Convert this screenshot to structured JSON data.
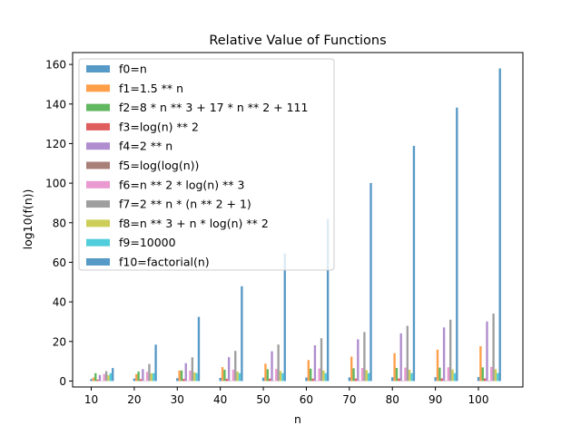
{
  "chart_data": {
    "type": "bar",
    "title": "Relative Value of Functions",
    "xlabel": "n",
    "ylabel": "log10(f(n))",
    "ylim": [
      -3,
      166
    ],
    "categories": [
      "10",
      "20",
      "30",
      "40",
      "50",
      "60",
      "70",
      "80",
      "90",
      "100"
    ],
    "x_ticks": [
      "10",
      "20",
      "30",
      "40",
      "50",
      "60",
      "70",
      "80",
      "90",
      "100"
    ],
    "y_ticks": [
      "0",
      "20",
      "40",
      "60",
      "80",
      "100",
      "120",
      "140",
      "160"
    ],
    "legend_position": "upper-left",
    "grid": false,
    "series": [
      {
        "name": "f0=n",
        "color": "#1f77b4",
        "values": [
          1.0,
          1.3,
          1.48,
          1.6,
          1.7,
          1.78,
          1.85,
          1.9,
          1.95,
          2.0
        ]
      },
      {
        "name": "f1=1.5 ** n",
        "color": "#ff7f0e",
        "values": [
          1.76,
          3.52,
          5.28,
          7.04,
          8.8,
          10.57,
          12.33,
          14.09,
          15.85,
          17.61
        ]
      },
      {
        "name": "f2=8 * n ** 3 + 17 * n ** 2 + 111",
        "color": "#2ca02c",
        "values": [
          3.98,
          4.82,
          5.34,
          5.71,
          6.0,
          6.24,
          6.44,
          6.62,
          6.77,
          6.91
        ]
      },
      {
        "name": "f3=log(n) ** 2",
        "color": "#d62728",
        "values": [
          0.72,
          0.95,
          1.06,
          1.13,
          1.19,
          1.23,
          1.26,
          1.28,
          1.31,
          1.33
        ]
      },
      {
        "name": "f4=2 ** n",
        "color": "#9467bd",
        "values": [
          3.01,
          6.02,
          9.03,
          12.04,
          15.05,
          18.06,
          21.07,
          24.08,
          27.09,
          30.1
        ]
      },
      {
        "name": "f5=log(log(n))",
        "color": "#8c564b",
        "values": [
          -0.08,
          0.07,
          0.11,
          0.14,
          0.15,
          0.17,
          0.17,
          0.18,
          0.19,
          0.19
        ]
      },
      {
        "name": "f6=n ** 2 * log(n) ** 3",
        "color": "#e377c2",
        "values": [
          3.54,
          4.63,
          5.27,
          5.72,
          6.07,
          6.34,
          6.59,
          6.79,
          6.97,
          7.13
        ]
      },
      {
        "name": "f7=2 ** n * (n ** 2 + 1)",
        "color": "#7f7f7f",
        "values": [
          5.01,
          8.62,
          11.99,
          15.24,
          18.45,
          21.62,
          24.76,
          27.89,
          31.0,
          34.1
        ]
      },
      {
        "name": "f8=n ** 3 + n * log(n) ** 2",
        "color": "#bcbd22",
        "values": [
          3.0,
          3.9,
          4.43,
          4.8,
          5.1,
          5.33,
          5.54,
          5.71,
          5.86,
          6.0
        ]
      },
      {
        "name": "f9=10000",
        "color": "#17becf",
        "values": [
          4,
          4,
          4,
          4,
          4,
          4,
          4,
          4,
          4,
          4
        ]
      },
      {
        "name": "f10=factorial(n)",
        "color": "#1f77b4",
        "values": [
          6.56,
          18.39,
          32.42,
          47.91,
          64.48,
          81.92,
          100.08,
          118.86,
          138.17,
          157.97
        ]
      }
    ]
  }
}
